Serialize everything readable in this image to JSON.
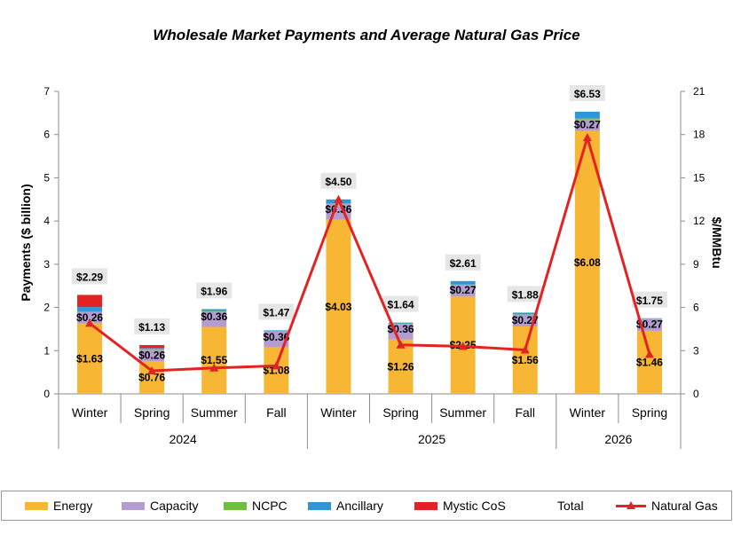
{
  "chart_data": {
    "type": "bar",
    "title": "Wholesale Market Payments and Average Natural Gas Price",
    "ylabel": "Payments ($ billion)",
    "y2label": "$/MMBtu",
    "ylim": [
      0,
      7
    ],
    "y2lim": [
      0,
      21
    ],
    "yticks": [
      "0",
      "1",
      "2",
      "3",
      "4",
      "5",
      "6",
      "7"
    ],
    "y2ticks": [
      "0",
      "3",
      "6",
      "9",
      "12",
      "15",
      "18",
      "21"
    ],
    "categories": [
      "Winter",
      "Spring",
      "Summer",
      "Fall",
      "Winter",
      "Spring",
      "Summer",
      "Fall",
      "Winter",
      "Spring"
    ],
    "groups": [
      {
        "label": "2024",
        "count": 4
      },
      {
        "label": "2025",
        "count": 4
      },
      {
        "label": "2026",
        "count": 2
      }
    ],
    "series": [
      {
        "name": "Energy",
        "color": "#f7b633",
        "values": [
          1.63,
          0.76,
          1.55,
          1.08,
          4.03,
          1.26,
          2.25,
          1.56,
          6.08,
          1.46
        ],
        "labels": [
          "$1.63",
          "$0.76",
          "$1.55",
          "$1.08",
          "$4.03",
          "$1.26",
          "$2.25",
          "$1.56",
          "$6.08",
          "$1.46"
        ]
      },
      {
        "name": "Capacity",
        "color": "#b39ccf",
        "values": [
          0.26,
          0.26,
          0.36,
          0.36,
          0.36,
          0.36,
          0.27,
          0.27,
          0.27,
          0.27
        ],
        "labels": [
          "$0.26",
          "$0.26",
          "$0.36",
          "$0.36",
          "$0.36",
          "$0.36",
          "$0.27",
          "$0.27",
          "$0.27",
          "$0.27"
        ]
      },
      {
        "name": "NCPC",
        "color": "#6fbf3c",
        "values": [
          0.02,
          0.02,
          0.01,
          0.01,
          0.02,
          0.01,
          0.01,
          0.01,
          0.02,
          0.01
        ]
      },
      {
        "name": "Ancillary",
        "color": "#2f97d5",
        "values": [
          0.1,
          0.02,
          0.04,
          0.02,
          0.09,
          0.02,
          0.08,
          0.04,
          0.16,
          0.01
        ]
      },
      {
        "name": "Mystic CoS",
        "color": "#e32323",
        "values": [
          0.28,
          0.07,
          0.0,
          0.0,
          0.0,
          0.0,
          0.0,
          0.0,
          0.0,
          0.0
        ]
      }
    ],
    "totals": {
      "name": "Total",
      "values": [
        "$2.29",
        "$1.13",
        "$1.96",
        "$1.47",
        "$4.50",
        "$1.64",
        "$2.61",
        "$1.88",
        "$6.53",
        "$1.75"
      ]
    },
    "line": {
      "name": "Natural Gas",
      "color": "#e32323",
      "values": [
        4.9,
        1.6,
        1.8,
        1.95,
        13.5,
        3.4,
        3.3,
        3.05,
        17.8,
        2.75
      ]
    },
    "legend_position": "bottom"
  }
}
